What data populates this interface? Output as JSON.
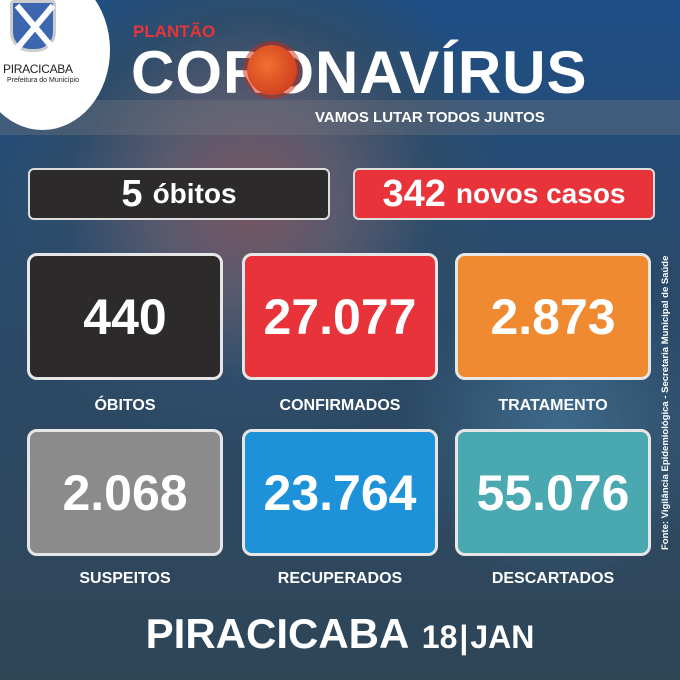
{
  "logo": {
    "name": "PIRACICABA",
    "subtitle": "Prefeitura do Município"
  },
  "header": {
    "kicker": "PLANTÃO",
    "title": "CORONAVÍRUS",
    "slogan": "VAMOS LUTAR TODOS JUNTOS"
  },
  "daily": [
    {
      "value": "5",
      "label": "óbitos",
      "color": "#2c2a2b"
    },
    {
      "value": "342",
      "label": "novos casos",
      "color": "#e8333a"
    }
  ],
  "stats": [
    {
      "value": "440",
      "label": "ÓBITOS",
      "color": "#2c2a2b"
    },
    {
      "value": "27.077",
      "label": "CONFIRMADOS",
      "color": "#e8333a"
    },
    {
      "value": "2.873",
      "label": "TRATAMENTO",
      "color": "#f08a30"
    },
    {
      "value": "2.068",
      "label": "SUSPEITOS",
      "color": "#8b8b8b"
    },
    {
      "value": "23.764",
      "label": "RECUPERADOS",
      "color": "#1d92d8"
    },
    {
      "value": "55.076",
      "label": "DESCARTADOS",
      "color": "#4aa8b0"
    }
  ],
  "source": "Fonte: Vigilância Epidemiológica - Secretaria Municipal de Saúde",
  "footer": {
    "city": "PIRACICABA",
    "day": "18",
    "month": "JAN"
  }
}
